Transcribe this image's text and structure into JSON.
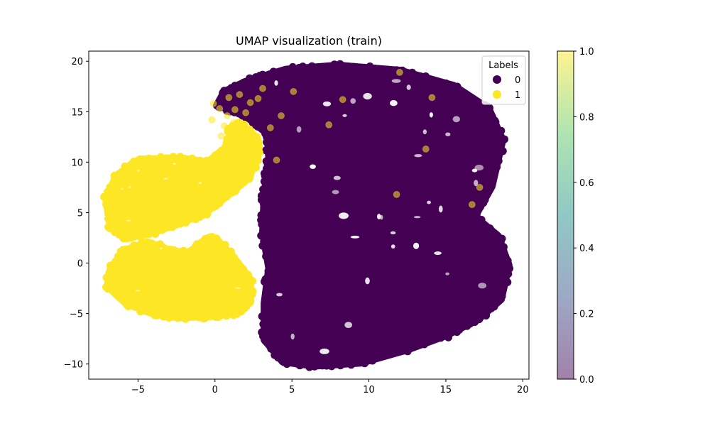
{
  "chart_data": {
    "type": "scatter",
    "title": "UMAP visualization (train)",
    "xlabel": "",
    "ylabel": "",
    "xlim": [
      -8.2,
      20.4
    ],
    "ylim": [
      -11.5,
      21.0
    ],
    "xticks": [
      -5,
      0,
      5,
      10,
      15,
      20
    ],
    "yticks": [
      -10,
      -5,
      0,
      5,
      10,
      15,
      20
    ],
    "grid": false,
    "legend": {
      "title": "Labels",
      "position": "top-right",
      "entries": [
        {
          "label": "0",
          "color": "#440154"
        },
        {
          "label": "1",
          "color": "#fde725"
        }
      ]
    },
    "colorbar": {
      "min": 0.0,
      "max": 1.0,
      "ticks": [
        "0.0",
        "0.2",
        "0.4",
        "0.6",
        "0.8",
        "1.0"
      ],
      "colormap": "viridis",
      "alpha": 0.5
    },
    "series": [
      {
        "name": "0",
        "color": "#440154",
        "regions": [
          [
            [
              4.6,
              19.2
            ],
            [
              8.0,
              19.6
            ],
            [
              12.0,
              19.1
            ],
            [
              15.5,
              17.6
            ],
            [
              17.8,
              15.3
            ],
            [
              18.7,
              12.2
            ],
            [
              18.0,
              7.6
            ],
            [
              16.9,
              4.6
            ],
            [
              18.4,
              2.7
            ],
            [
              19.1,
              -0.2
            ],
            [
              18.6,
              -3.6
            ],
            [
              17.1,
              -5.6
            ],
            [
              15.0,
              -7.2
            ],
            [
              12.5,
              -8.6
            ],
            [
              9.5,
              -9.9
            ],
            [
              6.5,
              -10.2
            ],
            [
              4.4,
              -9.8
            ],
            [
              3.2,
              -7.6
            ],
            [
              3.2,
              -4.0
            ],
            [
              3.5,
              -0.5
            ],
            [
              3.1,
              3.0
            ],
            [
              3.2,
              6.8
            ],
            [
              3.5,
              10.4
            ],
            [
              3.4,
              12.8
            ],
            [
              2.2,
              14.3
            ],
            [
              1.0,
              15.2
            ],
            [
              0.1,
              15.6
            ],
            [
              0.6,
              17.0
            ],
            [
              2.0,
              18.0
            ]
          ]
        ],
        "highlights": [
          [
            -0.2,
            14.2
          ],
          [
            0.3,
            15.3
          ],
          [
            0.9,
            16.4
          ],
          [
            1.3,
            15.2
          ],
          [
            0.6,
            13.6
          ],
          [
            -0.1,
            15.8
          ],
          [
            1.6,
            16.7
          ],
          [
            2.3,
            15.9
          ],
          [
            0.8,
            14.6
          ],
          [
            0.4,
            12.6
          ],
          [
            1.2,
            13.9
          ],
          [
            2.0,
            14.9
          ],
          [
            2.8,
            16.3
          ],
          [
            4.3,
            14.6
          ],
          [
            3.6,
            13.4
          ],
          [
            4.0,
            10.2
          ],
          [
            7.4,
            13.7
          ],
          [
            8.3,
            16.2
          ],
          [
            12.0,
            18.9
          ],
          [
            13.7,
            11.3
          ],
          [
            11.8,
            6.8
          ],
          [
            17.2,
            7.5
          ],
          [
            16.7,
            5.8
          ],
          [
            3.1,
            17.3
          ],
          [
            5.1,
            17.0
          ],
          [
            14.1,
            16.4
          ]
        ]
      },
      {
        "name": "1",
        "color": "#fde725",
        "regions": [
          [
            [
              -4.9,
              10.3
            ],
            [
              -2.1,
              10.4
            ],
            [
              -0.5,
              10.0
            ],
            [
              0.9,
              11.7
            ],
            [
              1.0,
              13.2
            ],
            [
              1.6,
              13.9
            ],
            [
              2.6,
              12.6
            ],
            [
              2.8,
              10.6
            ],
            [
              2.2,
              8.4
            ],
            [
              0.6,
              6.4
            ],
            [
              -0.6,
              5.0
            ],
            [
              -2.3,
              3.9
            ],
            [
              -4.1,
              3.0
            ],
            [
              -5.8,
              2.4
            ],
            [
              -6.8,
              3.6
            ],
            [
              -7.1,
              6.4
            ],
            [
              -6.4,
              8.7
            ]
          ],
          [
            [
              -6.8,
              -0.6
            ],
            [
              -5.8,
              1.3
            ],
            [
              -4.4,
              2.1
            ],
            [
              -3.0,
              1.3
            ],
            [
              -1.8,
              1.0
            ],
            [
              -0.9,
              1.9
            ],
            [
              -0.3,
              2.6
            ],
            [
              0.4,
              1.9
            ],
            [
              1.4,
              0.2
            ],
            [
              2.3,
              -1.6
            ],
            [
              2.3,
              -3.9
            ],
            [
              1.3,
              -5.0
            ],
            [
              -0.3,
              -5.3
            ],
            [
              -2.4,
              -5.4
            ],
            [
              -4.1,
              -5.0
            ],
            [
              -5.8,
              -4.0
            ],
            [
              -7.0,
              -2.3
            ]
          ]
        ]
      }
    ]
  }
}
